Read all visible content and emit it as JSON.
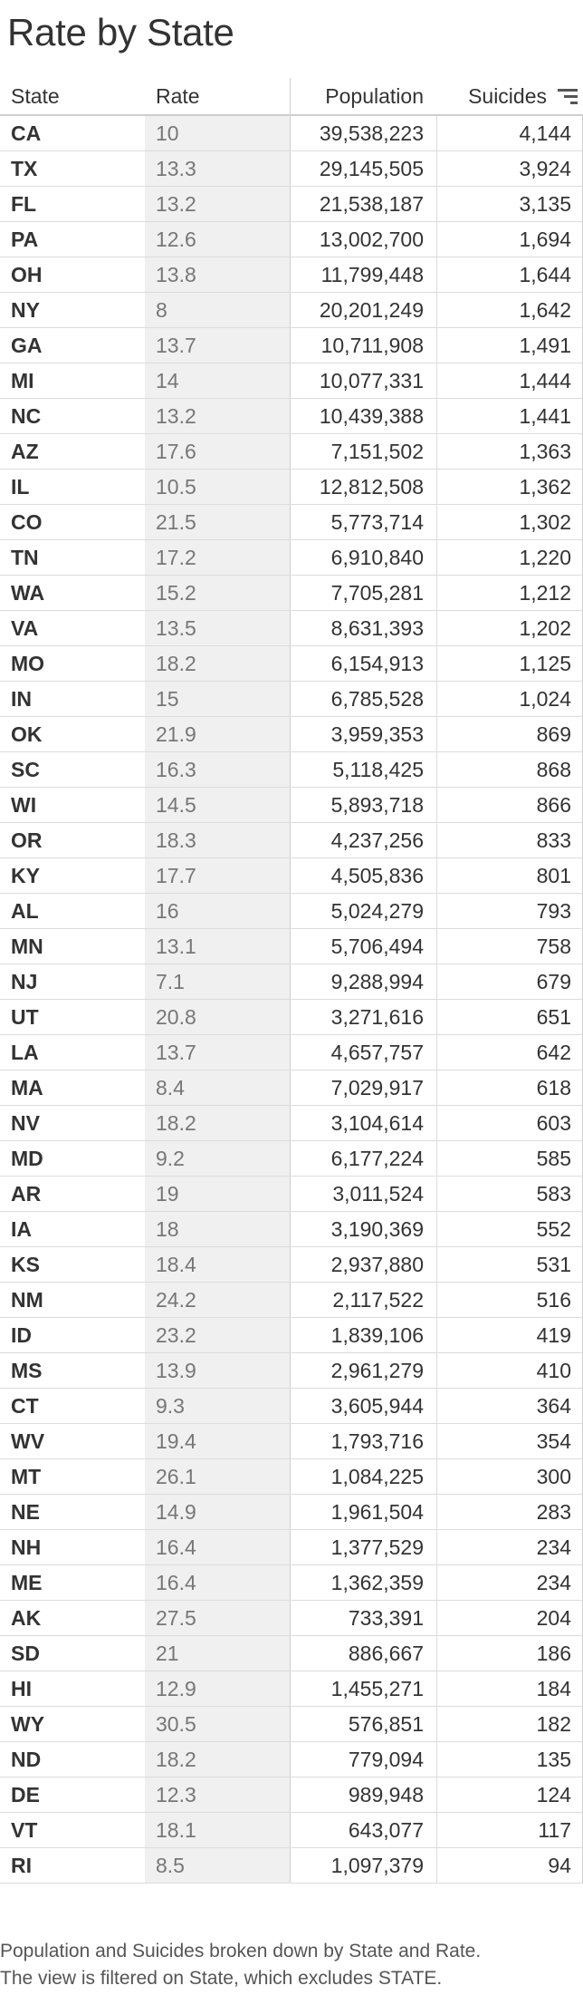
{
  "title": "Rate by State",
  "columns": {
    "state": "State",
    "rate": "Rate",
    "population": "Population",
    "suicides": "Suicides"
  },
  "sort_icon": "sort-descending-icon",
  "rows": [
    [
      "CA",
      "10",
      "39,538,223",
      "4,144"
    ],
    [
      "TX",
      "13.3",
      "29,145,505",
      "3,924"
    ],
    [
      "FL",
      "13.2",
      "21,538,187",
      "3,135"
    ],
    [
      "PA",
      "12.6",
      "13,002,700",
      "1,694"
    ],
    [
      "OH",
      "13.8",
      "11,799,448",
      "1,644"
    ],
    [
      "NY",
      "8",
      "20,201,249",
      "1,642"
    ],
    [
      "GA",
      "13.7",
      "10,711,908",
      "1,491"
    ],
    [
      "MI",
      "14",
      "10,077,331",
      "1,444"
    ],
    [
      "NC",
      "13.2",
      "10,439,388",
      "1,441"
    ],
    [
      "AZ",
      "17.6",
      "7,151,502",
      "1,363"
    ],
    [
      "IL",
      "10.5",
      "12,812,508",
      "1,362"
    ],
    [
      "CO",
      "21.5",
      "5,773,714",
      "1,302"
    ],
    [
      "TN",
      "17.2",
      "6,910,840",
      "1,220"
    ],
    [
      "WA",
      "15.2",
      "7,705,281",
      "1,212"
    ],
    [
      "VA",
      "13.5",
      "8,631,393",
      "1,202"
    ],
    [
      "MO",
      "18.2",
      "6,154,913",
      "1,125"
    ],
    [
      "IN",
      "15",
      "6,785,528",
      "1,024"
    ],
    [
      "OK",
      "21.9",
      "3,959,353",
      "869"
    ],
    [
      "SC",
      "16.3",
      "5,118,425",
      "868"
    ],
    [
      "WI",
      "14.5",
      "5,893,718",
      "866"
    ],
    [
      "OR",
      "18.3",
      "4,237,256",
      "833"
    ],
    [
      "KY",
      "17.7",
      "4,505,836",
      "801"
    ],
    [
      "AL",
      "16",
      "5,024,279",
      "793"
    ],
    [
      "MN",
      "13.1",
      "5,706,494",
      "758"
    ],
    [
      "NJ",
      "7.1",
      "9,288,994",
      "679"
    ],
    [
      "UT",
      "20.8",
      "3,271,616",
      "651"
    ],
    [
      "LA",
      "13.7",
      "4,657,757",
      "642"
    ],
    [
      "MA",
      "8.4",
      "7,029,917",
      "618"
    ],
    [
      "NV",
      "18.2",
      "3,104,614",
      "603"
    ],
    [
      "MD",
      "9.2",
      "6,177,224",
      "585"
    ],
    [
      "AR",
      "19",
      "3,011,524",
      "583"
    ],
    [
      "IA",
      "18",
      "3,190,369",
      "552"
    ],
    [
      "KS",
      "18.4",
      "2,937,880",
      "531"
    ],
    [
      "NM",
      "24.2",
      "2,117,522",
      "516"
    ],
    [
      "ID",
      "23.2",
      "1,839,106",
      "419"
    ],
    [
      "MS",
      "13.9",
      "2,961,279",
      "410"
    ],
    [
      "CT",
      "9.3",
      "3,605,944",
      "364"
    ],
    [
      "WV",
      "19.4",
      "1,793,716",
      "354"
    ],
    [
      "MT",
      "26.1",
      "1,084,225",
      "300"
    ],
    [
      "NE",
      "14.9",
      "1,961,504",
      "283"
    ],
    [
      "NH",
      "16.4",
      "1,377,529",
      "234"
    ],
    [
      "ME",
      "16.4",
      "1,362,359",
      "234"
    ],
    [
      "AK",
      "27.5",
      "733,391",
      "204"
    ],
    [
      "SD",
      "21",
      "886,667",
      "186"
    ],
    [
      "HI",
      "12.9",
      "1,455,271",
      "184"
    ],
    [
      "WY",
      "30.5",
      "576,851",
      "182"
    ],
    [
      "ND",
      "18.2",
      "779,094",
      "135"
    ],
    [
      "DE",
      "12.3",
      "989,948",
      "124"
    ],
    [
      "VT",
      "18.1",
      "643,077",
      "117"
    ],
    [
      "RI",
      "8.5",
      "1,097,379",
      "94"
    ]
  ],
  "footer": {
    "line1": "Population and Suicides broken down by State and Rate.",
    "line2": "The view is filtered on State, which excludes STATE."
  }
}
